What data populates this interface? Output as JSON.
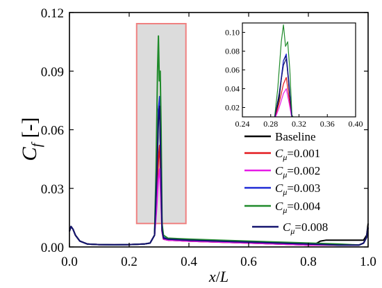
{
  "chart_data": {
    "type": "line",
    "ylabel": {
      "main": "C",
      "sub": "f",
      "unit": " [-]"
    },
    "xlabel": {
      "main": "x",
      "sep": "/",
      "tail": "L"
    },
    "xlim": [
      0.0,
      1.0
    ],
    "ylim": [
      0.0,
      0.12
    ],
    "xticks": [
      "0.0",
      "0.2",
      "0.4",
      "0.6",
      "0.8",
      "1.0"
    ],
    "xtick_values": [
      0.0,
      0.2,
      0.4,
      0.6,
      0.8,
      1.0
    ],
    "yticks": [
      "0.00",
      "0.03",
      "0.06",
      "0.09",
      "0.12"
    ],
    "ytick_values": [
      0.0,
      0.03,
      0.06,
      0.09,
      0.12
    ],
    "highlight_region": {
      "x": [
        0.225,
        0.39
      ],
      "y": [
        0.012,
        0.12
      ]
    },
    "legend": {
      "placement": "lower-right",
      "entries": [
        {
          "prefix": "Baseline",
          "italic": "",
          "sub": "",
          "suffix": "",
          "color": "#000000"
        },
        {
          "prefix": "",
          "italic": "C",
          "sub": "μ",
          "suffix": "=0.001",
          "color": "#e3161b"
        },
        {
          "prefix": "",
          "italic": "C",
          "sub": "μ",
          "suffix": "=0.002",
          "color": "#e61be6"
        },
        {
          "prefix": "",
          "italic": "C",
          "sub": "μ",
          "suffix": "=0.003",
          "color": "#1f2ad6"
        },
        {
          "prefix": "",
          "italic": "C",
          "sub": "μ",
          "suffix": "=0.004",
          "color": "#1f8a2a"
        },
        {
          "prefix": "",
          "italic": "C",
          "sub": "μ",
          "suffix": "=0.008",
          "color": "#14146e"
        }
      ]
    },
    "series": [
      {
        "color": "#000000",
        "points": [
          [
            0.0,
            0.008
          ],
          [
            0.005,
            0.0105
          ],
          [
            0.012,
            0.009
          ],
          [
            0.02,
            0.006
          ],
          [
            0.035,
            0.003
          ],
          [
            0.06,
            0.0015
          ],
          [
            0.1,
            0.0012
          ],
          [
            0.15,
            0.0011
          ],
          [
            0.2,
            0.0012
          ],
          [
            0.25,
            0.0015
          ],
          [
            0.27,
            0.002
          ],
          [
            0.285,
            0.006
          ],
          [
            0.292,
            0.03
          ],
          [
            0.298,
            0.07
          ],
          [
            0.302,
            0.075
          ],
          [
            0.306,
            0.04
          ],
          [
            0.31,
            0.008
          ],
          [
            0.315,
            0.004
          ],
          [
            0.33,
            0.0035
          ],
          [
            0.4,
            0.003
          ],
          [
            0.5,
            0.0025
          ],
          [
            0.6,
            0.002
          ],
          [
            0.7,
            0.0015
          ],
          [
            0.8,
            0.001
          ],
          [
            0.82,
            0.0012
          ],
          [
            0.84,
            0.003
          ],
          [
            0.86,
            0.0035
          ],
          [
            0.9,
            0.0035
          ],
          [
            0.95,
            0.0035
          ],
          [
            0.985,
            0.0035
          ],
          [
            0.995,
            0.006
          ],
          [
            1.0,
            0.012
          ]
        ]
      },
      {
        "color": "#e3161b",
        "points": [
          [
            0.0,
            0.008
          ],
          [
            0.005,
            0.0105
          ],
          [
            0.012,
            0.009
          ],
          [
            0.02,
            0.006
          ],
          [
            0.035,
            0.003
          ],
          [
            0.06,
            0.0015
          ],
          [
            0.1,
            0.0012
          ],
          [
            0.15,
            0.0011
          ],
          [
            0.2,
            0.0012
          ],
          [
            0.25,
            0.0015
          ],
          [
            0.27,
            0.002
          ],
          [
            0.285,
            0.006
          ],
          [
            0.292,
            0.025
          ],
          [
            0.298,
            0.045
          ],
          [
            0.302,
            0.052
          ],
          [
            0.306,
            0.03
          ],
          [
            0.31,
            0.008
          ],
          [
            0.315,
            0.004
          ],
          [
            0.33,
            0.0035
          ],
          [
            0.4,
            0.003
          ],
          [
            0.5,
            0.0025
          ],
          [
            0.6,
            0.002
          ],
          [
            0.7,
            0.0015
          ],
          [
            0.8,
            0.001
          ],
          [
            0.9,
            0.001
          ],
          [
            0.97,
            0.001
          ],
          [
            0.985,
            0.002
          ],
          [
            0.995,
            0.005
          ],
          [
            1.0,
            0.01
          ]
        ]
      },
      {
        "color": "#e61be6",
        "points": [
          [
            0.0,
            0.008
          ],
          [
            0.005,
            0.0105
          ],
          [
            0.012,
            0.009
          ],
          [
            0.02,
            0.006
          ],
          [
            0.035,
            0.003
          ],
          [
            0.06,
            0.0015
          ],
          [
            0.1,
            0.0012
          ],
          [
            0.15,
            0.0011
          ],
          [
            0.2,
            0.0012
          ],
          [
            0.25,
            0.0015
          ],
          [
            0.27,
            0.002
          ],
          [
            0.285,
            0.006
          ],
          [
            0.292,
            0.02
          ],
          [
            0.298,
            0.035
          ],
          [
            0.302,
            0.04
          ],
          [
            0.306,
            0.025
          ],
          [
            0.31,
            0.008
          ],
          [
            0.315,
            0.004
          ],
          [
            0.33,
            0.0035
          ],
          [
            0.4,
            0.003
          ],
          [
            0.5,
            0.0025
          ],
          [
            0.6,
            0.002
          ],
          [
            0.7,
            0.0015
          ],
          [
            0.8,
            0.001
          ],
          [
            0.9,
            0.001
          ],
          [
            0.97,
            0.001
          ],
          [
            0.985,
            0.002
          ],
          [
            0.995,
            0.005
          ],
          [
            1.0,
            0.01
          ]
        ]
      },
      {
        "color": "#1f2ad6",
        "points": [
          [
            0.0,
            0.008
          ],
          [
            0.005,
            0.0105
          ],
          [
            0.012,
            0.009
          ],
          [
            0.02,
            0.006
          ],
          [
            0.035,
            0.003
          ],
          [
            0.06,
            0.0015
          ],
          [
            0.1,
            0.0012
          ],
          [
            0.15,
            0.0011
          ],
          [
            0.2,
            0.0012
          ],
          [
            0.25,
            0.0015
          ],
          [
            0.27,
            0.002
          ],
          [
            0.285,
            0.006
          ],
          [
            0.292,
            0.035
          ],
          [
            0.298,
            0.07
          ],
          [
            0.302,
            0.077
          ],
          [
            0.306,
            0.045
          ],
          [
            0.31,
            0.01
          ],
          [
            0.315,
            0.005
          ],
          [
            0.33,
            0.004
          ],
          [
            0.4,
            0.0035
          ],
          [
            0.5,
            0.003
          ],
          [
            0.6,
            0.0025
          ],
          [
            0.7,
            0.002
          ],
          [
            0.8,
            0.0015
          ],
          [
            0.9,
            0.001
          ],
          [
            0.97,
            0.001
          ],
          [
            0.985,
            0.002
          ],
          [
            0.995,
            0.005
          ],
          [
            1.0,
            0.01
          ]
        ]
      },
      {
        "color": "#1f8a2a",
        "points": [
          [
            0.0,
            0.008
          ],
          [
            0.005,
            0.0105
          ],
          [
            0.012,
            0.009
          ],
          [
            0.02,
            0.006
          ],
          [
            0.035,
            0.003
          ],
          [
            0.06,
            0.0015
          ],
          [
            0.1,
            0.0012
          ],
          [
            0.15,
            0.0011
          ],
          [
            0.2,
            0.0012
          ],
          [
            0.25,
            0.0015
          ],
          [
            0.27,
            0.002
          ],
          [
            0.285,
            0.006
          ],
          [
            0.29,
            0.04
          ],
          [
            0.295,
            0.09
          ],
          [
            0.298,
            0.108
          ],
          [
            0.301,
            0.085
          ],
          [
            0.304,
            0.09
          ],
          [
            0.307,
            0.06
          ],
          [
            0.31,
            0.012
          ],
          [
            0.315,
            0.006
          ],
          [
            0.33,
            0.0045
          ],
          [
            0.4,
            0.004
          ],
          [
            0.5,
            0.0035
          ],
          [
            0.6,
            0.003
          ],
          [
            0.7,
            0.0025
          ],
          [
            0.8,
            0.002
          ],
          [
            0.9,
            0.0015
          ],
          [
            0.97,
            0.001
          ],
          [
            0.985,
            0.002
          ],
          [
            0.995,
            0.005
          ],
          [
            1.0,
            0.01
          ]
        ]
      },
      {
        "color": "#14146e",
        "points": [
          [
            0.0,
            0.008
          ],
          [
            0.005,
            0.0105
          ],
          [
            0.012,
            0.009
          ],
          [
            0.02,
            0.006
          ],
          [
            0.035,
            0.003
          ],
          [
            0.06,
            0.0015
          ],
          [
            0.1,
            0.0012
          ],
          [
            0.15,
            0.0011
          ],
          [
            0.2,
            0.0012
          ],
          [
            0.25,
            0.0015
          ],
          [
            0.27,
            0.002
          ],
          [
            0.285,
            0.006
          ],
          [
            0.292,
            0.035
          ],
          [
            0.298,
            0.065
          ],
          [
            0.302,
            0.072
          ],
          [
            0.306,
            0.042
          ],
          [
            0.31,
            0.009
          ],
          [
            0.315,
            0.0045
          ],
          [
            0.33,
            0.004
          ],
          [
            0.4,
            0.0035
          ],
          [
            0.5,
            0.003
          ],
          [
            0.6,
            0.0025
          ],
          [
            0.7,
            0.002
          ],
          [
            0.8,
            0.0015
          ],
          [
            0.9,
            0.001
          ],
          [
            0.97,
            0.001
          ],
          [
            0.985,
            0.002
          ],
          [
            0.995,
            0.005
          ],
          [
            1.0,
            0.01
          ]
        ]
      }
    ],
    "inset": {
      "xlim": [
        0.24,
        0.4
      ],
      "ylim": [
        0.01,
        0.11
      ],
      "xticks": [
        "0.24",
        "0.28",
        "0.32",
        "0.36",
        "0.40"
      ],
      "xtick_values": [
        0.24,
        0.28,
        0.32,
        0.36,
        0.4
      ],
      "yticks": [
        "0.02",
        "0.04",
        "0.06",
        "0.08",
        "0.10"
      ],
      "ytick_values": [
        0.02,
        0.04,
        0.06,
        0.08,
        0.1
      ]
    }
  }
}
